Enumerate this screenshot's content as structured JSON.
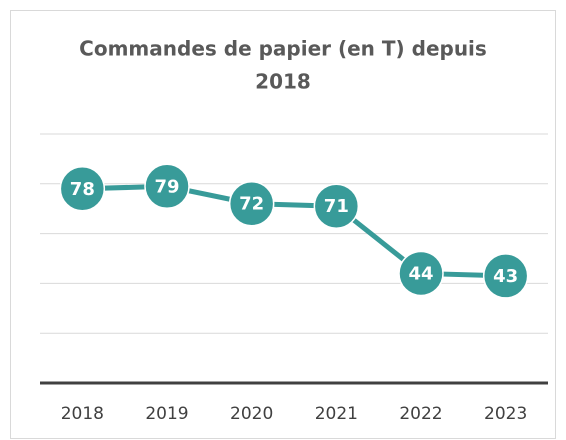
{
  "chart_data": {
    "type": "line",
    "title": [
      "Commandes de papier (en T) depuis",
      "2018"
    ],
    "categories": [
      "2018",
      "2019",
      "2020",
      "2021",
      "2022",
      "2023"
    ],
    "values": [
      78,
      79,
      72,
      71,
      44,
      43
    ],
    "color": "#389b99",
    "ylim": [
      0,
      100
    ],
    "yticks": [
      0,
      20,
      40,
      60,
      80,
      100
    ],
    "grid": true
  }
}
